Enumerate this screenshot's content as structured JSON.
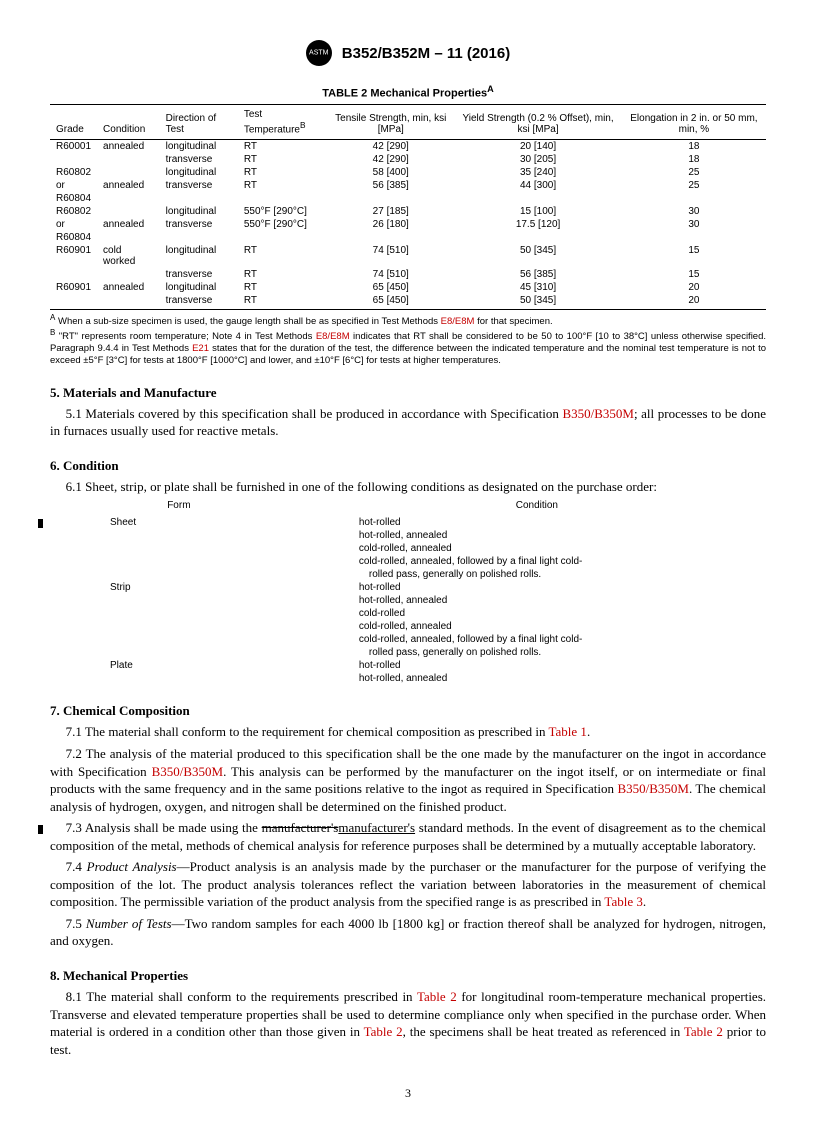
{
  "header": {
    "doc_id": "B352/B352M – 11 (2016)"
  },
  "table2": {
    "title": "TABLE 2 Mechanical Properties",
    "title_sup": "A",
    "headers": {
      "grade": "Grade",
      "condition": "Condition",
      "direction": "Direction of Test",
      "temp": "Test Temperature",
      "temp_sup": "B",
      "tensile": "Tensile Strength, min, ksi [MPa]",
      "yield": "Yield Strength (0.2 % Offset), min, ksi [MPa]",
      "elong": "Elongation in 2 in. or 50 mm, min, %"
    },
    "rows": [
      {
        "grade": "R60001",
        "cond": "annealed",
        "dir": "longitudinal",
        "temp": "RT",
        "ts": "42 [290]",
        "ys": "20 [140]",
        "el": "18"
      },
      {
        "grade": "",
        "cond": "",
        "dir": "transverse",
        "temp": "RT",
        "ts": "42 [290]",
        "ys": "30 [205]",
        "el": "18"
      },
      {
        "grade": "R60802",
        "cond": "",
        "dir": "longitudinal",
        "temp": "RT",
        "ts": "58 [400]",
        "ys": "35 [240]",
        "el": "25"
      },
      {
        "grade": "or",
        "cond": "annealed",
        "dir": "transverse",
        "temp": "RT",
        "ts": "56 [385]",
        "ys": "44 [300]",
        "el": "25"
      },
      {
        "grade": "R60804",
        "cond": "",
        "dir": "",
        "temp": "",
        "ts": "",
        "ys": "",
        "el": ""
      },
      {
        "grade": "R60802",
        "cond": "",
        "dir": "longitudinal",
        "temp": "550°F [290°C]",
        "ts": "27 [185]",
        "ys": "15 [100]",
        "el": "30"
      },
      {
        "grade": "or",
        "cond": "annealed",
        "dir": "transverse",
        "temp": "550°F [290°C]",
        "ts": "26 [180]",
        "ys": "17.5 [120]",
        "el": "30"
      },
      {
        "grade": "R60804",
        "cond": "",
        "dir": "",
        "temp": "",
        "ts": "",
        "ys": "",
        "el": ""
      },
      {
        "grade": "R60901",
        "cond": "cold worked",
        "dir": "longitudinal",
        "temp": "RT",
        "ts": "74 [510]",
        "ys": "50 [345]",
        "el": "15"
      },
      {
        "grade": "",
        "cond": "",
        "dir": "transverse",
        "temp": "RT",
        "ts": "74 [510]",
        "ys": "56 [385]",
        "el": "15"
      },
      {
        "grade": "R60901",
        "cond": "annealed",
        "dir": "longitudinal",
        "temp": "RT",
        "ts": "65 [450]",
        "ys": "45 [310]",
        "el": "20"
      },
      {
        "grade": "",
        "cond": "",
        "dir": "transverse",
        "temp": "RT",
        "ts": "65 [450]",
        "ys": "50 [345]",
        "el": "20"
      }
    ],
    "footnotes": {
      "A_pre": "When a sub-size specimen is used, the gauge length shall be as specified in Test Methods ",
      "A_ref": "E8/E8M",
      "A_post": " for that specimen.",
      "B_pre": "\"RT\" represents room temperature; Note 4 in Test Methods ",
      "B_ref1": "E8/E8M",
      "B_mid": " indicates that RT shall be considered to be 50 to 100°F [10 to 38°C] unless otherwise specified. Paragraph 9.4.4 in Test Methods ",
      "B_ref2": "E21",
      "B_post": " states that for the duration of the test, the difference between the indicated temperature and the nominal test temperature is not to exceed ±5°F [3°C] for tests at 1800°F [1000°C] and lower, and ±10°F [6°C] for tests at higher temperatures."
    }
  },
  "sec5": {
    "title": "5. Materials and Manufacture",
    "p1_pre": "5.1 Materials covered by this specification shall be produced in accordance with Specification ",
    "p1_ref": "B350/B350M",
    "p1_post": "; all processes to be done in furnaces usually used for reactive metals."
  },
  "sec6": {
    "title": "6. Condition",
    "p1": "6.1 Sheet, strip, or plate shall be furnished in one of the following conditions as designated on the purchase order:",
    "hdr_form": "Form",
    "hdr_cond": "Condition",
    "rows": [
      {
        "form": "Sheet",
        "cond": "hot-rolled"
      },
      {
        "form": "",
        "cond": "hot-rolled, annealed"
      },
      {
        "form": "",
        "cond": "cold-rolled, annealed"
      },
      {
        "form": "",
        "cond": "cold-rolled, annealed, followed by a final light cold-"
      },
      {
        "form": "",
        "cond": " rolled pass, generally on polished rolls."
      },
      {
        "form": "Strip",
        "cond": "hot-rolled"
      },
      {
        "form": "",
        "cond": "hot-rolled, annealed"
      },
      {
        "form": "",
        "cond": "cold-rolled"
      },
      {
        "form": "",
        "cond": "cold-rolled, annealed"
      },
      {
        "form": "",
        "cond": "cold-rolled, annealed, followed by a final light cold-"
      },
      {
        "form": "",
        "cond": " rolled pass, generally on polished rolls."
      },
      {
        "form": "Plate",
        "cond": "hot-rolled"
      },
      {
        "form": "",
        "cond": "hot-rolled, annealed"
      }
    ]
  },
  "sec7": {
    "title": "7. Chemical Composition",
    "p1_pre": "7.1 The material shall conform to the requirement for chemical composition as prescribed in ",
    "p1_ref": "Table 1",
    "p1_post": ".",
    "p2_pre": "7.2 The analysis of the material produced to this specification shall be the one made by the manufacturer on the ingot in accordance with Specification ",
    "p2_ref1": "B350/B350M",
    "p2_mid": ". This analysis can be performed by the manufacturer on the ingot itself, or on intermediate or final products with the same frequency and in the same positions relative to the ingot as required in Specification ",
    "p2_ref2": "B350/B350M",
    "p2_post": ". The chemical analysis of hydrogen, oxygen, and nitrogen shall be determined on the finished product.",
    "p3_pre": "7.3 Analysis shall be made using the ",
    "p3_strike": "manufacturer's",
    "p3_under": "manufacturer's",
    "p3_post": " standard methods. In the event of disagreement as to the chemical composition of the metal, methods of chemical analysis for reference purposes shall be determined by a mutually acceptable laboratory.",
    "p4_t": "Product Analysis",
    "p4_pre": "—Product analysis is an analysis made by the purchaser or the manufacturer for the purpose of verifying the composition of the lot. The product analysis tolerances reflect the variation between laboratories in the measurement of chemical composition. The permissible variation of the product analysis from the specified range is as prescribed in ",
    "p4_ref": "Table 3",
    "p4_post": ".",
    "p5_t": "Number of Tests",
    "p5": "—Two random samples for each 4000 lb [1800 kg] or fraction thereof shall be analyzed for hydrogen, nitrogen, and oxygen."
  },
  "sec8": {
    "title": "8. Mechanical Properties",
    "p1_pre": "8.1 The material shall conform to the requirements prescribed in ",
    "p1_ref1": "Table 2",
    "p1_mid1": " for longitudinal room-temperature mechanical properties. Transverse and elevated temperature properties shall be used to determine compliance only when specified in the purchase order. When material is ordered in a condition other than those given in ",
    "p1_ref2": "Table 2",
    "p1_mid2": ", the specimens shall be heat treated as referenced in ",
    "p1_ref3": "Table 2",
    "p1_post": " prior to test."
  },
  "page_number": "3"
}
